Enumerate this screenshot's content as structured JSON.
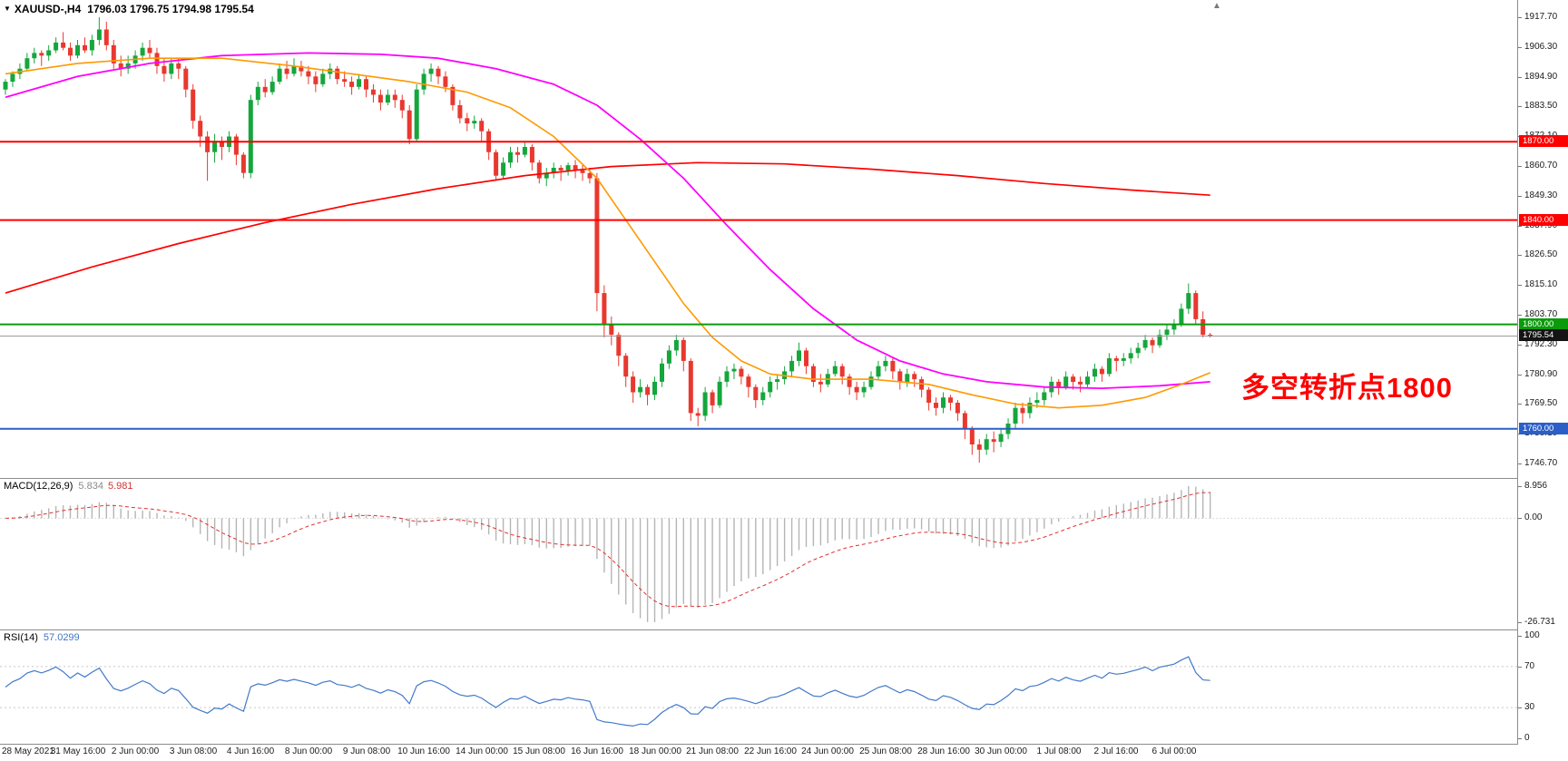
{
  "header": {
    "symbol_period": "XAUUSD-,H4",
    "ohlc": "1796.03 1796.75 1794.98 1795.54"
  },
  "annotation": {
    "text": "多空转折点1800",
    "color": "#FF0000"
  },
  "colors": {
    "candle_up": "#15A63C",
    "candle_down": "#E8382F",
    "macd_hist": "#B5B5B5",
    "macd_signal": "#E03030",
    "rsi_line": "#4379C9",
    "level_line": "#C8C8C8",
    "bid_line": "#9A9A9A",
    "separator": "#8C8C8C"
  },
  "chart_data": {
    "type": "candlestick",
    "symbol": "XAUUSD-",
    "timeframe": "H4",
    "price_axis_ticks": [
      "1917.70",
      "1906.30",
      "1894.90",
      "1883.50",
      "1872.10",
      "1860.70",
      "1849.30",
      "1837.90",
      "1826.50",
      "1815.10",
      "1803.70",
      "1792.30",
      "1780.90",
      "1769.50",
      "1758.10",
      "1746.70"
    ],
    "price_range": {
      "top": 1917.7,
      "bottom": 1746.7
    },
    "hlines": [
      {
        "price": 1870.0,
        "label": "1870.00",
        "color": "#FF0000",
        "width": 2
      },
      {
        "price": 1840.0,
        "label": "1840.00",
        "color": "#FF0000",
        "width": 2
      },
      {
        "price": 1800.0,
        "label": "1800.00",
        "color": "#0A9B0A",
        "width": 2
      },
      {
        "price": 1760.0,
        "label": "1760.00",
        "color": "#2B5FC7",
        "width": 2
      }
    ],
    "current_price": {
      "value": 1795.54,
      "label": "1795.54",
      "line_color": "#9A9A9A",
      "badge_color": "#141414"
    },
    "time_labels": [
      "28 May 2021",
      "31 May 16:00",
      "2 Jun 00:00",
      "3 Jun 08:00",
      "4 Jun 16:00",
      "8 Jun 00:00",
      "9 Jun 08:00",
      "10 Jun 16:00",
      "14 Jun 00:00",
      "15 Jun 08:00",
      "16 Jun 16:00",
      "18 Jun 00:00",
      "21 Jun 08:00",
      "22 Jun 16:00",
      "24 Jun 00:00",
      "25 Jun 08:00",
      "28 Jun 16:00",
      "30 Jun 00:00",
      "1 Jul 08:00",
      "2 Jul 16:00",
      "6 Jul 00:00"
    ],
    "ma_lines": [
      {
        "name": "ma-slowest-red-line",
        "color": "#FF0000",
        "width": 1.7,
        "points": [
          [
            0,
            1812
          ],
          [
            12,
            1822
          ],
          [
            24,
            1831
          ],
          [
            36,
            1839
          ],
          [
            48,
            1846
          ],
          [
            60,
            1852
          ],
          [
            72,
            1857
          ],
          [
            84,
            1860.5
          ],
          [
            96,
            1862
          ],
          [
            108,
            1861.5
          ],
          [
            120,
            1859.5
          ],
          [
            132,
            1857
          ],
          [
            144,
            1854
          ],
          [
            156,
            1851.5
          ],
          [
            167,
            1849.5
          ]
        ]
      },
      {
        "name": "ma-slow-magenta-line",
        "color": "#FF00FF",
        "width": 1.8,
        "points": [
          [
            0,
            1887
          ],
          [
            10,
            1895
          ],
          [
            20,
            1900
          ],
          [
            30,
            1903
          ],
          [
            42,
            1904
          ],
          [
            52,
            1903.5
          ],
          [
            60,
            1902
          ],
          [
            68,
            1898
          ],
          [
            76,
            1892
          ],
          [
            82,
            1884
          ],
          [
            88,
            1871
          ],
          [
            94,
            1856
          ],
          [
            100,
            1838
          ],
          [
            106,
            1821
          ],
          [
            112,
            1806
          ],
          [
            118,
            1794
          ],
          [
            124,
            1786
          ],
          [
            130,
            1781
          ],
          [
            136,
            1778
          ],
          [
            144,
            1776
          ],
          [
            152,
            1775.5
          ],
          [
            160,
            1776.5
          ],
          [
            167,
            1778
          ]
        ]
      },
      {
        "name": "ma-fast-orange-line",
        "color": "#FF9900",
        "width": 1.6,
        "points": [
          [
            0,
            1896
          ],
          [
            10,
            1900
          ],
          [
            20,
            1902
          ],
          [
            30,
            1902
          ],
          [
            40,
            1899
          ],
          [
            48,
            1896
          ],
          [
            56,
            1893
          ],
          [
            64,
            1889
          ],
          [
            70,
            1883
          ],
          [
            76,
            1872
          ],
          [
            82,
            1856
          ],
          [
            86,
            1840
          ],
          [
            90,
            1824
          ],
          [
            94,
            1808
          ],
          [
            98,
            1795
          ],
          [
            102,
            1786
          ],
          [
            106,
            1781
          ],
          [
            112,
            1779
          ],
          [
            120,
            1779
          ],
          [
            128,
            1777
          ],
          [
            134,
            1773
          ],
          [
            140,
            1769.5
          ],
          [
            146,
            1768
          ],
          [
            152,
            1769
          ],
          [
            158,
            1772
          ],
          [
            163,
            1777
          ],
          [
            167,
            1781.5
          ]
        ]
      }
    ],
    "candles": [
      [
        1890,
        1894,
        1888,
        1893
      ],
      [
        1893,
        1897,
        1891,
        1896
      ],
      [
        1896,
        1900,
        1894,
        1898
      ],
      [
        1898,
        1904,
        1897,
        1902
      ],
      [
        1902,
        1906,
        1900,
        1904
      ],
      [
        1904,
        1905,
        1899,
        1903
      ],
      [
        1903,
        1907,
        1901,
        1905
      ],
      [
        1905,
        1910,
        1904,
        1908
      ],
      [
        1908,
        1912,
        1905,
        1906
      ],
      [
        1906,
        1908,
        1901,
        1903
      ],
      [
        1903,
        1909,
        1902,
        1907
      ],
      [
        1907,
        1910,
        1904,
        1905
      ],
      [
        1905,
        1911,
        1903,
        1909
      ],
      [
        1909,
        1917.7,
        1907,
        1913
      ],
      [
        1913,
        1916,
        1905,
        1907
      ],
      [
        1907,
        1909,
        1898,
        1900
      ],
      [
        1900,
        1903,
        1895,
        1898
      ],
      [
        1898,
        1903,
        1896,
        1900
      ],
      [
        1900,
        1905,
        1898,
        1903
      ],
      [
        1903,
        1908,
        1901,
        1906
      ],
      [
        1906,
        1909,
        1902,
        1904
      ],
      [
        1904,
        1906,
        1896,
        1899
      ],
      [
        1899,
        1902,
        1893,
        1896
      ],
      [
        1896,
        1902,
        1894,
        1900
      ],
      [
        1900,
        1902,
        1894,
        1898
      ],
      [
        1898,
        1899,
        1887,
        1890
      ],
      [
        1890,
        1892,
        1875,
        1878
      ],
      [
        1878,
        1880,
        1868,
        1872
      ],
      [
        1872,
        1874,
        1855,
        1866
      ],
      [
        1866,
        1873,
        1862,
        1870
      ],
      [
        1870,
        1872,
        1863,
        1868
      ],
      [
        1868,
        1874,
        1866,
        1872
      ],
      [
        1872,
        1873,
        1861,
        1865
      ],
      [
        1865,
        1866,
        1856,
        1858
      ],
      [
        1858,
        1888,
        1856,
        1886
      ],
      [
        1886,
        1893,
        1884,
        1891
      ],
      [
        1891,
        1894,
        1887,
        1889
      ],
      [
        1889,
        1895,
        1888,
        1893
      ],
      [
        1893,
        1900,
        1892,
        1898
      ],
      [
        1898,
        1901,
        1894,
        1896
      ],
      [
        1896,
        1902,
        1895,
        1899
      ],
      [
        1899,
        1901,
        1895,
        1897
      ],
      [
        1897,
        1899,
        1892,
        1895
      ],
      [
        1895,
        1897,
        1889,
        1892
      ],
      [
        1892,
        1898,
        1891,
        1896
      ],
      [
        1896,
        1900,
        1894,
        1898
      ],
      [
        1898,
        1899,
        1892,
        1894
      ],
      [
        1894,
        1897,
        1891,
        1893
      ],
      [
        1893,
        1895,
        1888,
        1891
      ],
      [
        1891,
        1896,
        1890,
        1894
      ],
      [
        1894,
        1895,
        1887,
        1890
      ],
      [
        1890,
        1892,
        1885,
        1888
      ],
      [
        1888,
        1890,
        1882,
        1885
      ],
      [
        1885,
        1890,
        1884,
        1888
      ],
      [
        1888,
        1890,
        1883,
        1886
      ],
      [
        1886,
        1888,
        1879,
        1882
      ],
      [
        1882,
        1884,
        1869,
        1871
      ],
      [
        1871,
        1892,
        1870,
        1890
      ],
      [
        1890,
        1898,
        1888,
        1896
      ],
      [
        1896,
        1900,
        1893,
        1898
      ],
      [
        1898,
        1899,
        1892,
        1895
      ],
      [
        1895,
        1897,
        1889,
        1891
      ],
      [
        1891,
        1892,
        1882,
        1884
      ],
      [
        1884,
        1886,
        1877,
        1879
      ],
      [
        1879,
        1881,
        1874,
        1877
      ],
      [
        1877,
        1880,
        1875,
        1878
      ],
      [
        1878,
        1879,
        1870,
        1874
      ],
      [
        1874,
        1875,
        1863,
        1866
      ],
      [
        1866,
        1867,
        1855,
        1857
      ],
      [
        1857,
        1864,
        1856,
        1862
      ],
      [
        1862,
        1868,
        1860,
        1866
      ],
      [
        1866,
        1868,
        1862,
        1865
      ],
      [
        1865,
        1870,
        1864,
        1868
      ],
      [
        1868,
        1869,
        1859,
        1862
      ],
      [
        1862,
        1863,
        1854,
        1856
      ],
      [
        1856,
        1860,
        1853,
        1858
      ],
      [
        1858,
        1862,
        1856,
        1860
      ],
      [
        1860,
        1861,
        1855,
        1859
      ],
      [
        1859,
        1862,
        1857,
        1861
      ],
      [
        1861,
        1863,
        1856,
        1859
      ],
      [
        1859,
        1861,
        1855,
        1858
      ],
      [
        1858,
        1860,
        1854,
        1856
      ],
      [
        1856,
        1858,
        1805,
        1812
      ],
      [
        1812,
        1815,
        1795,
        1800
      ],
      [
        1800,
        1803,
        1792,
        1796
      ],
      [
        1796,
        1797,
        1784,
        1788
      ],
      [
        1788,
        1789,
        1776,
        1780
      ],
      [
        1780,
        1782,
        1770,
        1774
      ],
      [
        1774,
        1779,
        1772,
        1776
      ],
      [
        1776,
        1777,
        1769,
        1773
      ],
      [
        1773,
        1780,
        1771,
        1778
      ],
      [
        1778,
        1787,
        1776,
        1785
      ],
      [
        1785,
        1792,
        1783,
        1790
      ],
      [
        1790,
        1796,
        1788,
        1794
      ],
      [
        1794,
        1795,
        1782,
        1786
      ],
      [
        1786,
        1787,
        1763,
        1766
      ],
      [
        1766,
        1768,
        1761,
        1765
      ],
      [
        1765,
        1776,
        1763,
        1774
      ],
      [
        1774,
        1775,
        1766,
        1769
      ],
      [
        1769,
        1780,
        1768,
        1778
      ],
      [
        1778,
        1784,
        1776,
        1782
      ],
      [
        1782,
        1785,
        1779,
        1783
      ],
      [
        1783,
        1784,
        1777,
        1780
      ],
      [
        1780,
        1781,
        1772,
        1776
      ],
      [
        1776,
        1777,
        1768,
        1771
      ],
      [
        1771,
        1776,
        1769,
        1774
      ],
      [
        1774,
        1780,
        1772,
        1778
      ],
      [
        1778,
        1781,
        1775,
        1779
      ],
      [
        1779,
        1784,
        1777,
        1782
      ],
      [
        1782,
        1788,
        1780,
        1786
      ],
      [
        1786,
        1793,
        1784,
        1790
      ],
      [
        1790,
        1791,
        1781,
        1784
      ],
      [
        1784,
        1785,
        1776,
        1778
      ],
      [
        1778,
        1781,
        1774,
        1777
      ],
      [
        1777,
        1783,
        1776,
        1781
      ],
      [
        1781,
        1786,
        1780,
        1784
      ],
      [
        1784,
        1785,
        1777,
        1780
      ],
      [
        1780,
        1781,
        1773,
        1776
      ],
      [
        1776,
        1778,
        1771,
        1774
      ],
      [
        1774,
        1778,
        1772,
        1776
      ],
      [
        1776,
        1782,
        1775,
        1780
      ],
      [
        1780,
        1786,
        1779,
        1784
      ],
      [
        1784,
        1788,
        1782,
        1786
      ],
      [
        1786,
        1787,
        1779,
        1782
      ],
      [
        1782,
        1783,
        1775,
        1778
      ],
      [
        1778,
        1783,
        1776,
        1781
      ],
      [
        1781,
        1782,
        1776,
        1779
      ],
      [
        1779,
        1780,
        1772,
        1775
      ],
      [
        1775,
        1776,
        1767,
        1770
      ],
      [
        1770,
        1772,
        1765,
        1768
      ],
      [
        1768,
        1774,
        1766,
        1772
      ],
      [
        1772,
        1773,
        1767,
        1770
      ],
      [
        1770,
        1771,
        1763,
        1766
      ],
      [
        1766,
        1767,
        1756,
        1760
      ],
      [
        1760,
        1761,
        1750,
        1754
      ],
      [
        1754,
        1756,
        1747,
        1752
      ],
      [
        1752,
        1758,
        1750,
        1756
      ],
      [
        1756,
        1759,
        1751,
        1755
      ],
      [
        1755,
        1760,
        1753,
        1758
      ],
      [
        1758,
        1764,
        1756,
        1762
      ],
      [
        1762,
        1770,
        1760,
        1768
      ],
      [
        1768,
        1770,
        1762,
        1766
      ],
      [
        1766,
        1772,
        1764,
        1770
      ],
      [
        1770,
        1774,
        1768,
        1771
      ],
      [
        1771,
        1776,
        1769,
        1774
      ],
      [
        1774,
        1780,
        1772,
        1778
      ],
      [
        1778,
        1779,
        1773,
        1776
      ],
      [
        1776,
        1782,
        1775,
        1780
      ],
      [
        1780,
        1781,
        1775,
        1778
      ],
      [
        1778,
        1780,
        1774,
        1777
      ],
      [
        1777,
        1782,
        1776,
        1780
      ],
      [
        1780,
        1785,
        1778,
        1783
      ],
      [
        1783,
        1784,
        1778,
        1781
      ],
      [
        1781,
        1789,
        1780,
        1787
      ],
      [
        1787,
        1788,
        1782,
        1786
      ],
      [
        1786,
        1789,
        1784,
        1787
      ],
      [
        1787,
        1791,
        1785,
        1789
      ],
      [
        1789,
        1793,
        1787,
        1791
      ],
      [
        1791,
        1796,
        1790,
        1794
      ],
      [
        1794,
        1795,
        1789,
        1792
      ],
      [
        1792,
        1798,
        1791,
        1796
      ],
      [
        1796,
        1800,
        1794,
        1798
      ],
      [
        1798,
        1802,
        1796,
        1800
      ],
      [
        1800,
        1808,
        1799,
        1806
      ],
      [
        1806,
        1815.7,
        1804,
        1812
      ],
      [
        1812,
        1813,
        1800,
        1802
      ],
      [
        1802,
        1805,
        1795,
        1796
      ],
      [
        1796.03,
        1796.75,
        1794.98,
        1795.54
      ]
    ],
    "macd": {
      "label": "MACD(12,26,9)",
      "value_main": "5.834",
      "value_signal": "5.981",
      "params": [
        12,
        26,
        9
      ],
      "axis": [
        "8.956",
        "0.00",
        "-26.731"
      ]
    },
    "rsi": {
      "label": "RSI(14)",
      "value": "57.0299",
      "period": 14,
      "axis": [
        "100",
        "70",
        "30",
        "0"
      ],
      "levels": [
        70,
        30
      ]
    }
  }
}
